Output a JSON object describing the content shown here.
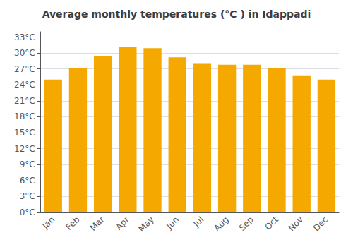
{
  "chart_data": {
    "type": "bar",
    "title": "Average monthly temperatures (°C ) in Idappadi",
    "categories": [
      "Jan",
      "Feb",
      "Mar",
      "Apr",
      "May",
      "Jun",
      "Jul",
      "Aug",
      "Sep",
      "Oct",
      "Nov",
      "Dec"
    ],
    "values": [
      25.0,
      27.2,
      29.5,
      31.2,
      30.9,
      29.2,
      28.1,
      27.8,
      27.8,
      27.2,
      25.8,
      25.0
    ],
    "color": "#F5A800",
    "ylim": [
      0,
      34
    ],
    "yticks": [
      {
        "value": 0,
        "label": "0°C"
      },
      {
        "value": 3,
        "label": "3°C"
      },
      {
        "value": 6,
        "label": "6°C"
      },
      {
        "value": 9,
        "label": "9°C"
      },
      {
        "value": 12,
        "label": "12°C"
      },
      {
        "value": 15,
        "label": "15°C"
      },
      {
        "value": 18,
        "label": "18°C"
      },
      {
        "value": 21,
        "label": "21°C"
      },
      {
        "value": 24,
        "label": "24°C"
      },
      {
        "value": 27,
        "label": "27°C"
      },
      {
        "value": 30,
        "label": "30°C"
      },
      {
        "value": 33,
        "label": "33°C"
      }
    ],
    "grid": true
  }
}
